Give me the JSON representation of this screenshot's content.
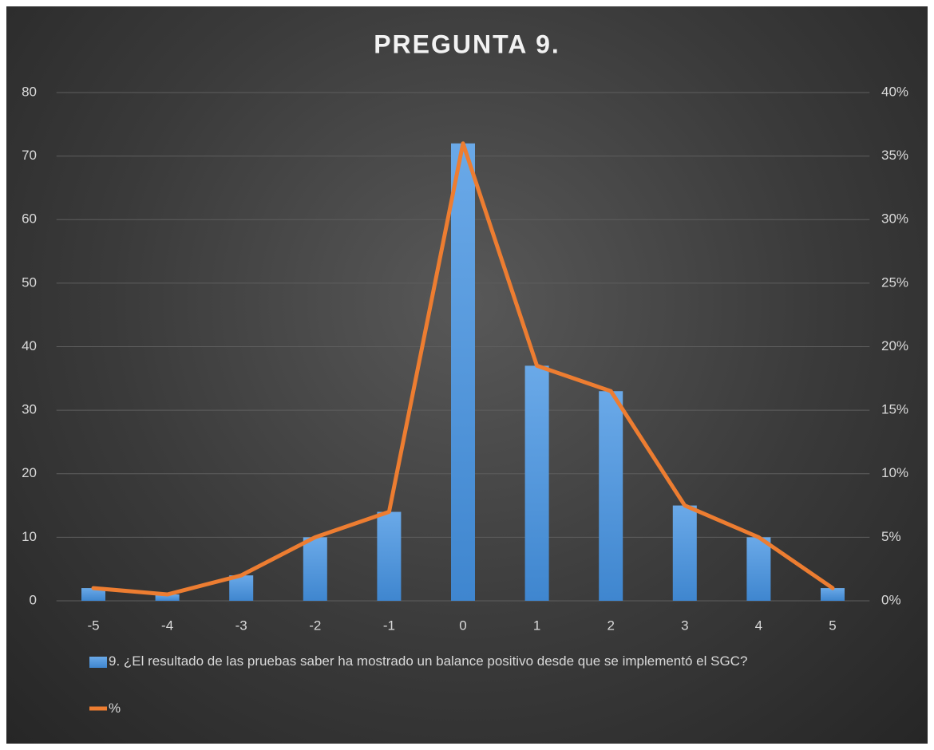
{
  "chart_data": {
    "type": "bar-line",
    "title": "PREGUNTA 9.",
    "categories": [
      -5,
      -4,
      -3,
      -2,
      -1,
      0,
      1,
      2,
      3,
      4,
      5
    ],
    "series": [
      {
        "name": "9. ¿El resultado de las pruebas saber ha mostrado un balance positivo desde que se implementó el SGC?",
        "color": "#4f96dd",
        "values": [
          2,
          1,
          4,
          10,
          14,
          72,
          37,
          33,
          15,
          10,
          2
        ]
      },
      {
        "name": "%",
        "color": "#ed7d31",
        "axis": "y2",
        "values": [
          1,
          0.5,
          2,
          5,
          7,
          36,
          18.5,
          16.5,
          7.5,
          5,
          1
        ]
      }
    ],
    "ylim": [
      0,
      80
    ],
    "yticks": [
      0,
      10,
      20,
      30,
      40,
      50,
      60,
      70,
      80
    ],
    "y2lim": [
      0,
      40
    ],
    "y2ticks": [
      {
        "value": 0,
        "label": "0%"
      },
      {
        "value": 5,
        "label": "5%"
      },
      {
        "value": 10,
        "label": "10%"
      },
      {
        "value": 15,
        "label": "15%"
      },
      {
        "value": 20,
        "label": "20%"
      },
      {
        "value": 25,
        "label": "25%"
      },
      {
        "value": 30,
        "label": "30%"
      },
      {
        "value": 35,
        "label": "35%"
      },
      {
        "value": 40,
        "label": "40%"
      }
    ],
    "grid": true
  }
}
